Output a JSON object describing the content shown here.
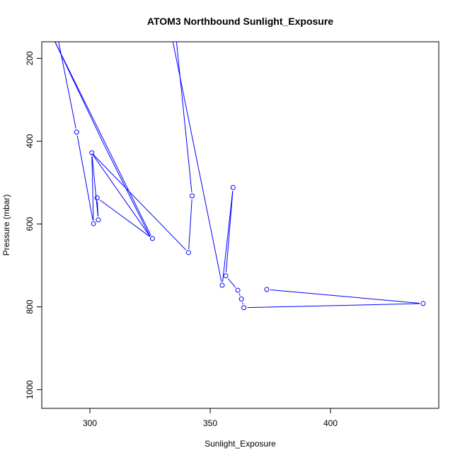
{
  "chart_data": {
    "type": "line",
    "title": "ATOM3 Northbound Sunlight_Exposure",
    "xlabel": "Sunlight_Exposure",
    "ylabel": "Pressure (mbar)",
    "xlim": [
      280,
      445
    ],
    "ylim": [
      1045,
      160
    ],
    "y_reversed": true,
    "x_ticks": [
      300,
      350,
      400
    ],
    "x_tick_labels": [
      "300",
      "350",
      "400"
    ],
    "y_ticks": [
      200,
      400,
      600,
      800,
      1000
    ],
    "y_tick_labels": [
      "200",
      "400",
      "600",
      "800",
      "1000"
    ],
    "grid": false,
    "legend": "none",
    "series_color": "#0000ff",
    "points": [
      {
        "x": 287.0,
        "y": 160.0,
        "marker": false
      },
      {
        "x": 294.5,
        "y": 378.0,
        "marker": true
      },
      {
        "x": 301.5,
        "y": 599.0,
        "marker": true
      },
      {
        "x": 300.8,
        "y": 428.0,
        "marker": true
      },
      {
        "x": 303.5,
        "y": 590.0,
        "marker": true
      },
      {
        "x": 303.0,
        "y": 537.0,
        "marker": true
      },
      {
        "x": 326.0,
        "y": 635.0,
        "marker": true
      },
      {
        "x": 285.5,
        "y": 160.0,
        "marker": false
      },
      {
        "x": 306.0,
        "y": 410.0,
        "marker": false
      },
      {
        "x": 325.0,
        "y": 630.0,
        "marker": false
      },
      {
        "x": 301.5,
        "y": 435.0,
        "marker": false
      },
      {
        "x": 301.0,
        "y": 430.0,
        "marker": false
      },
      {
        "x": 341.0,
        "y": 669.0,
        "marker": true
      },
      {
        "x": 342.5,
        "y": 532.0,
        "marker": true
      },
      {
        "x": 336.0,
        "y": 160.0,
        "marker": false
      },
      {
        "x": 334.5,
        "y": 160.0,
        "marker": false
      },
      {
        "x": 355.0,
        "y": 748.0,
        "marker": true
      },
      {
        "x": 359.5,
        "y": 512.0,
        "marker": true
      },
      {
        "x": 356.5,
        "y": 725.0,
        "marker": true
      },
      {
        "x": 361.5,
        "y": 760.0,
        "marker": true
      },
      {
        "x": 363.0,
        "y": 781.0,
        "marker": true
      },
      {
        "x": 364.0,
        "y": 802.0,
        "marker": true
      },
      {
        "x": 438.5,
        "y": 792.0,
        "marker": true
      },
      {
        "x": 373.5,
        "y": 758.0,
        "marker": true
      }
    ]
  }
}
